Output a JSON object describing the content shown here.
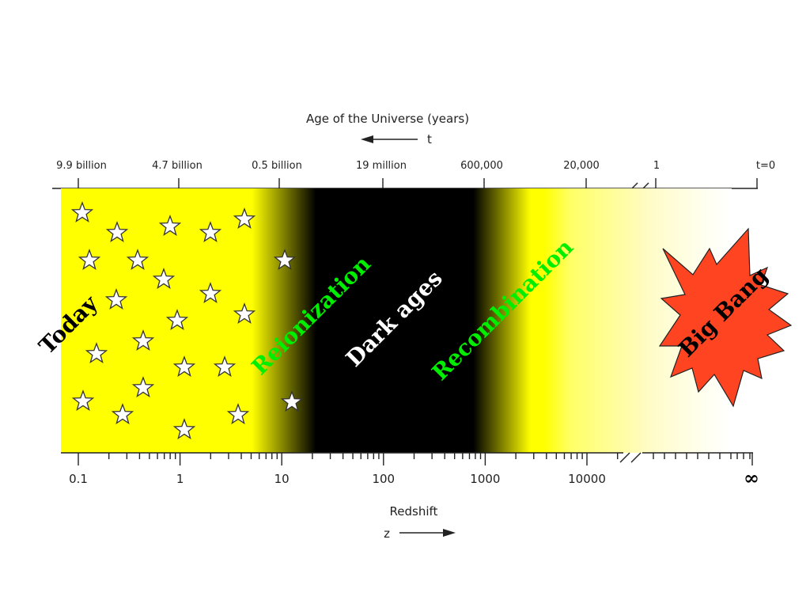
{
  "top_axis": {
    "title": "Age of the Universe (years)",
    "direction_label": "t",
    "ticks": [
      "9.9 billion",
      "4.7 billion",
      "0.5 billion",
      "19 million",
      "600,000",
      "20,000",
      "1",
      "t=0"
    ]
  },
  "bottom_axis": {
    "title": "Redshift",
    "direction_label": "z",
    "ticks": [
      "0.1",
      "1",
      "10",
      "100",
      "1000",
      "10000"
    ],
    "end_label": "∞",
    "scale": "log"
  },
  "eras": {
    "today": {
      "label": "Today",
      "color": "#000000"
    },
    "reionization": {
      "label": "Reionization",
      "color": "#00ee00"
    },
    "dark_ages": {
      "label": "Dark ages",
      "color": "#ffffff"
    },
    "recombination": {
      "label": "Recombination",
      "color": "#00ee00"
    },
    "big_bang": {
      "label": "Big Bang",
      "color": "#000000",
      "burst_color": "#ff4422"
    }
  },
  "colors": {
    "band_yellow": "#ffff00",
    "dark": "#000000",
    "background": "#ffffff"
  },
  "icons": {
    "star": "star-icon",
    "burst": "explosion-burst-icon"
  }
}
